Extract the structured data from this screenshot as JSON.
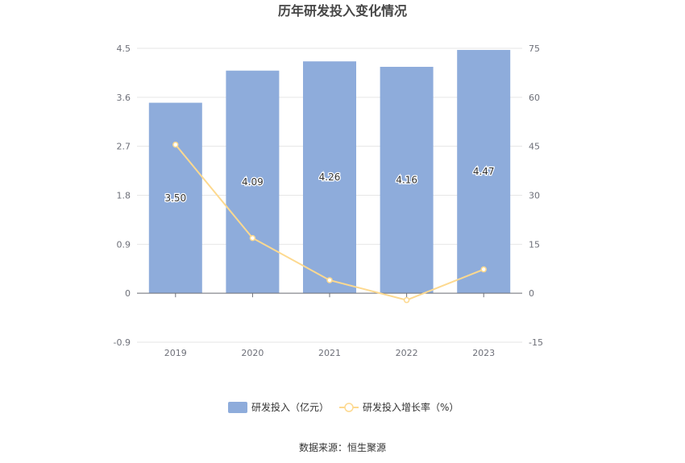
{
  "chart_data": {
    "type": "bar",
    "title": "历年研发投入变化情况",
    "categories": [
      "2019",
      "2020",
      "2021",
      "2022",
      "2023"
    ],
    "series": [
      {
        "name": "研发投入（亿元）",
        "type": "bar",
        "axis": "left",
        "values": [
          3.5,
          4.09,
          4.26,
          4.16,
          4.47
        ],
        "labels": [
          "3.50",
          "4.09",
          "4.26",
          "4.16",
          "4.47"
        ],
        "color": "#8eacdb"
      },
      {
        "name": "研发投入增长率（%）",
        "type": "line",
        "axis": "right",
        "values": [
          45.5,
          16.9,
          4.0,
          -2.1,
          7.3
        ],
        "color": "#fdd98f"
      }
    ],
    "y_left": {
      "min": -0.9,
      "max": 4.5,
      "ticks": [
        "4.5",
        "3.6",
        "2.7",
        "1.8",
        "0.9",
        "0",
        "-0.9"
      ]
    },
    "y_right": {
      "min": -15,
      "max": 75,
      "ticks": [
        "75",
        "60",
        "45",
        "30",
        "15",
        "0",
        "-15"
      ]
    },
    "grid": true,
    "legend_position": "bottom",
    "source": "数据来源：恒生聚源"
  }
}
